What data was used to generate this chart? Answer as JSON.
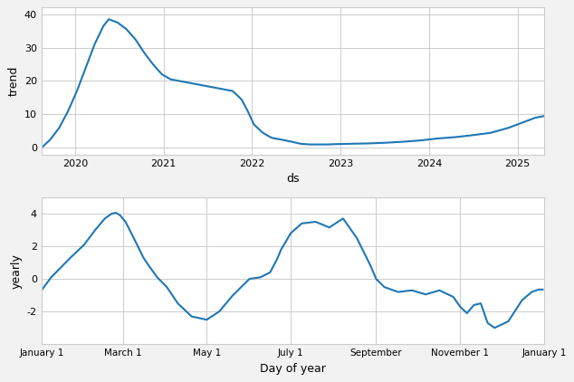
{
  "trend_x_years": [
    2019.62,
    2019.72,
    2019.82,
    2019.92,
    2020.02,
    2020.12,
    2020.22,
    2020.32,
    2020.38,
    2020.48,
    2020.58,
    2020.68,
    2020.78,
    2020.88,
    2020.98,
    2021.08,
    2021.18,
    2021.28,
    2021.38,
    2021.48,
    2021.58,
    2021.68,
    2021.78,
    2021.88,
    2021.95,
    2022.02,
    2022.12,
    2022.22,
    2022.32,
    2022.45,
    2022.55,
    2022.65,
    2022.75,
    2022.85,
    2022.95,
    2023.1,
    2023.3,
    2023.5,
    2023.7,
    2023.9,
    2024.1,
    2024.3,
    2024.5,
    2024.7,
    2024.9,
    2025.05,
    2025.2,
    2025.3
  ],
  "trend_y": [
    0.0,
    2.5,
    6.0,
    11.0,
    17.0,
    24.0,
    31.0,
    36.5,
    38.5,
    37.5,
    35.5,
    32.5,
    28.5,
    25.0,
    22.0,
    20.5,
    20.0,
    19.5,
    19.0,
    18.5,
    18.0,
    17.5,
    17.0,
    14.5,
    11.0,
    7.0,
    4.5,
    3.0,
    2.5,
    1.8,
    1.2,
    1.0,
    1.0,
    1.0,
    1.1,
    1.2,
    1.3,
    1.5,
    1.8,
    2.2,
    2.8,
    3.2,
    3.8,
    4.5,
    6.0,
    7.5,
    9.0,
    9.5
  ],
  "trend_xlabel": "ds",
  "trend_ylabel": "trend",
  "trend_xticks": [
    2020,
    2021,
    2022,
    2023,
    2024,
    2025
  ],
  "trend_ylim": [
    -2,
    42
  ],
  "trend_yticks": [
    0,
    10,
    20,
    30,
    40
  ],
  "yearly_doy": [
    1,
    8,
    15,
    22,
    32,
    40,
    47,
    52,
    55,
    58,
    62,
    68,
    75,
    79,
    85,
    92,
    100,
    110,
    121,
    130,
    140,
    152,
    160,
    167,
    172,
    175,
    182,
    190,
    200,
    210,
    220,
    230,
    240,
    244,
    250,
    260,
    270,
    280,
    290,
    300,
    305,
    310,
    315,
    320,
    325,
    330,
    340,
    350,
    357,
    362,
    365
  ],
  "yearly_y": [
    -0.7,
    0.1,
    0.7,
    1.3,
    2.1,
    3.0,
    3.7,
    4.0,
    4.05,
    3.9,
    3.5,
    2.5,
    1.3,
    0.8,
    0.1,
    -0.5,
    -1.5,
    -2.3,
    -2.5,
    -2.0,
    -1.0,
    0.0,
    0.1,
    0.4,
    1.2,
    1.8,
    2.8,
    3.4,
    3.5,
    3.15,
    3.7,
    2.5,
    0.8,
    0.0,
    -0.5,
    -0.8,
    -0.7,
    -0.95,
    -0.7,
    -1.1,
    -1.7,
    -2.1,
    -1.6,
    -1.5,
    -2.7,
    -3.0,
    -2.6,
    -1.3,
    -0.8,
    -0.65,
    -0.65
  ],
  "yearly_xlabel": "Day of year",
  "yearly_ylabel": "yearly",
  "yearly_xtick_days": [
    1,
    60,
    121,
    182,
    244,
    305,
    366
  ],
  "yearly_xtick_labels": [
    "January 1",
    "March 1",
    "May 1",
    "July 1",
    "September",
    "November 1",
    "January 1"
  ],
  "yearly_ylim": [
    -4,
    5
  ],
  "yearly_yticks": [
    -2,
    0,
    2,
    4
  ],
  "line_color": "#1f77b4",
  "bg_color": "#ffffff",
  "grid_color": "#cccccc",
  "fig_bg_color": "#f2f2f2"
}
